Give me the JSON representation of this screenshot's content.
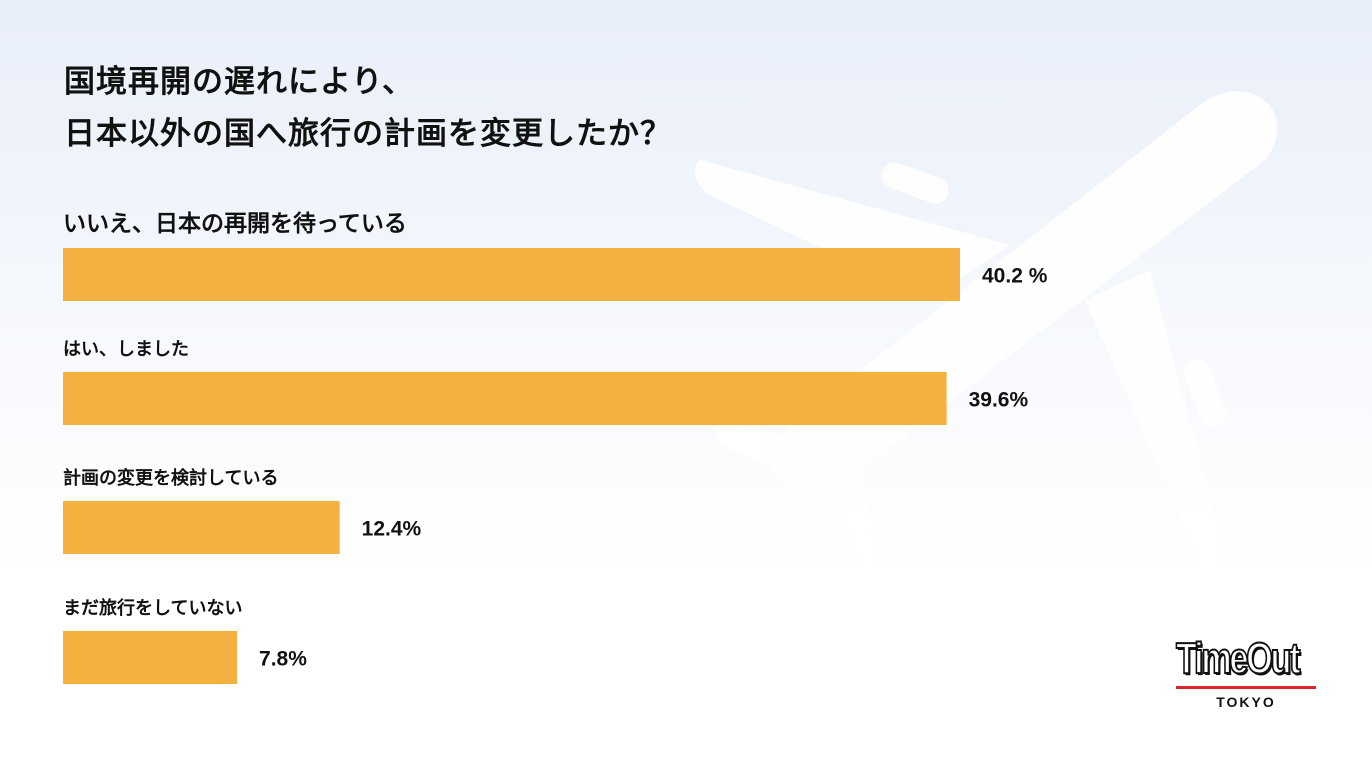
{
  "title": {
    "line1": "国境再開の遅れにより、",
    "line2": "日本以外の国へ旅行の計画を変更したか？"
  },
  "chart_data": {
    "type": "bar",
    "orientation": "horizontal",
    "categories": [
      "いいえ、日本の再開を待っている",
      "はい、しました",
      "計画の変更を検討している",
      "まだ旅行をしていない"
    ],
    "values": [
      40.2,
      39.6,
      12.4,
      7.8
    ],
    "value_labels": [
      "40.2 %",
      "39.6%",
      "12.4%",
      "7.8%"
    ],
    "unit": "%",
    "bar_color": "#f4b13f",
    "grid": false,
    "legend": "none"
  },
  "logo": {
    "name": "TimeOut",
    "city": "TOKYO",
    "accent_color": "#d8262e"
  }
}
